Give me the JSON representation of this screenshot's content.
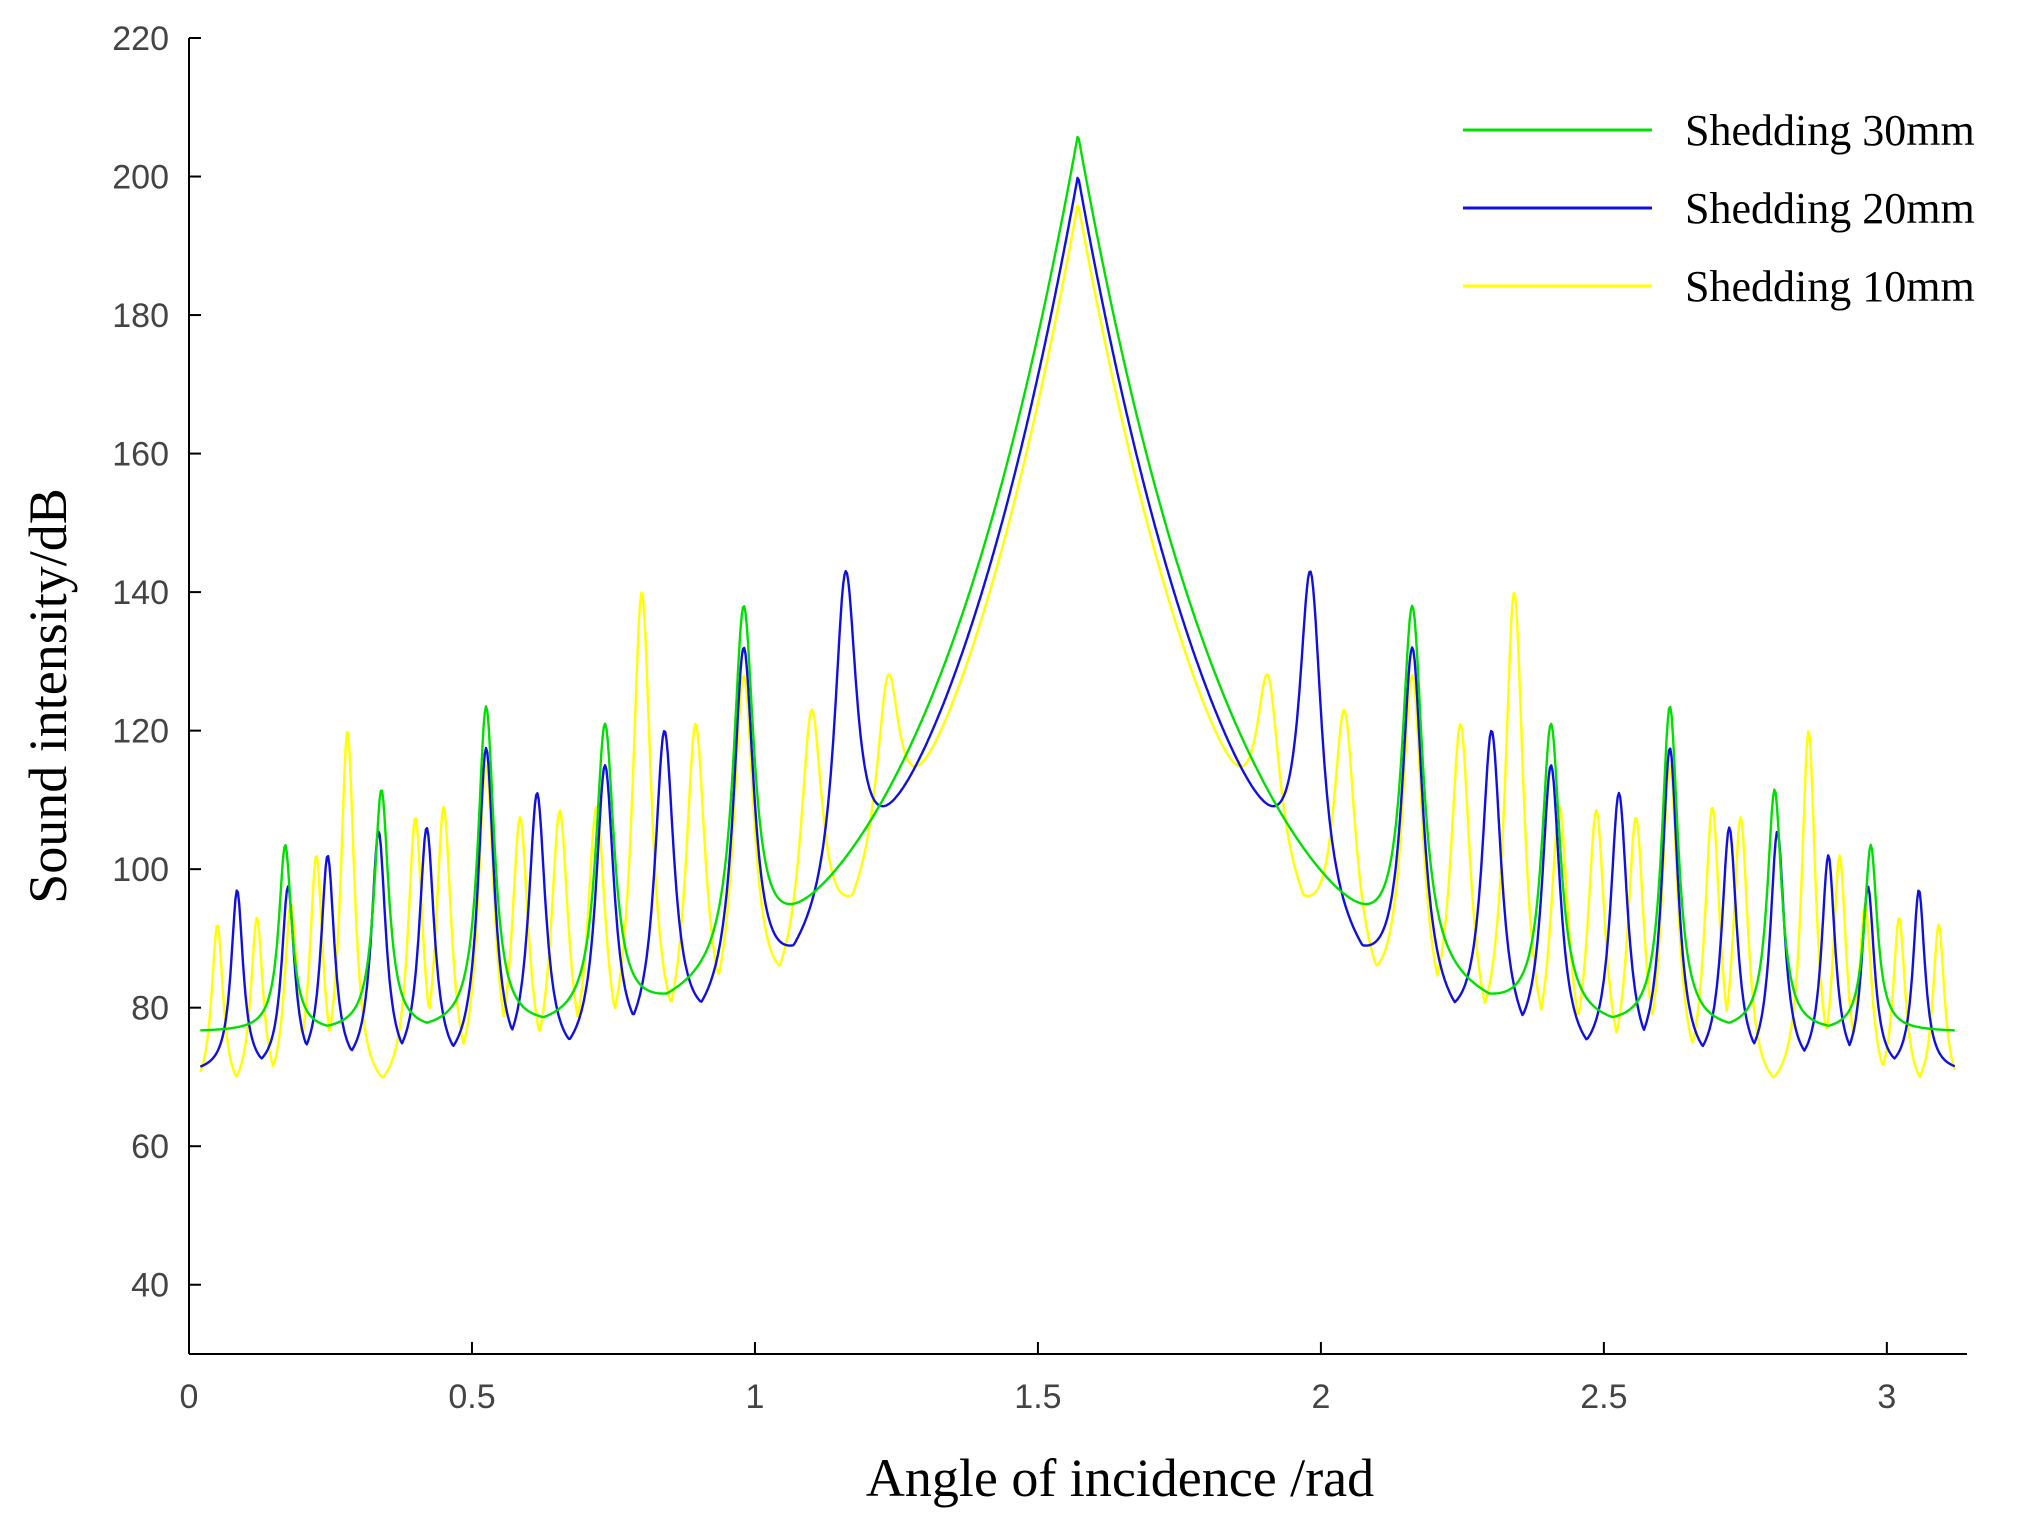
{
  "chart_data": {
    "type": "line",
    "title": "",
    "xlabel": "Angle of incidence /rad",
    "ylabel": "Sound intensity/dB",
    "xlim": [
      0,
      3.1416
    ],
    "ylim": [
      30,
      220
    ],
    "xticks": [
      0,
      0.5,
      1,
      1.5,
      2,
      2.5,
      3
    ],
    "xtick_labels": [
      "0",
      "0.5",
      "1",
      "1.5",
      "2",
      "2.5",
      "3"
    ],
    "yticks": [
      40,
      60,
      80,
      100,
      120,
      140,
      160,
      180,
      200,
      220
    ],
    "ytick_labels": [
      "40",
      "60",
      "80",
      "100",
      "120",
      "140",
      "160",
      "180",
      "200",
      "220"
    ],
    "grid": false,
    "legend_position": "top-right",
    "x_domain": [
      0.02,
      3.12
    ],
    "peak_center": 1.5708,
    "series": [
      {
        "name": "Shedding 30mm",
        "color": "#00e000",
        "center_peak": 206,
        "baseline_edge": 76.5,
        "resonances": [
          {
            "x": 0.17,
            "y": 103.5
          },
          {
            "x": 0.34,
            "y": 111.5
          },
          {
            "x": 0.525,
            "y": 123.5
          },
          {
            "x": 0.735,
            "y": 121
          },
          {
            "x": 0.98,
            "y": 138
          }
        ]
      },
      {
        "name": "Shedding 20mm",
        "color": "#1010e0",
        "center_peak": 200,
        "baseline_edge": 70.5,
        "resonances": [
          {
            "x": 0.085,
            "y": 97
          },
          {
            "x": 0.175,
            "y": 97.5
          },
          {
            "x": 0.245,
            "y": 102
          },
          {
            "x": 0.335,
            "y": 105.5
          },
          {
            "x": 0.42,
            "y": 106
          },
          {
            "x": 0.525,
            "y": 117.5
          },
          {
            "x": 0.615,
            "y": 111
          },
          {
            "x": 0.735,
            "y": 115
          },
          {
            "x": 0.84,
            "y": 120
          },
          {
            "x": 0.98,
            "y": 132
          },
          {
            "x": 1.16,
            "y": 143
          }
        ]
      },
      {
        "name": "Shedding 10mm",
        "color": "#ffff00",
        "center_peak": 196,
        "baseline_edge": 67,
        "resonances": [
          {
            "x": 0.05,
            "y": 92
          },
          {
            "x": 0.12,
            "y": 93
          },
          {
            "x": 0.18,
            "y": 95
          },
          {
            "x": 0.225,
            "y": 102
          },
          {
            "x": 0.28,
            "y": 120
          },
          {
            "x": 0.4,
            "y": 107.5
          },
          {
            "x": 0.45,
            "y": 109
          },
          {
            "x": 0.525,
            "y": 115
          },
          {
            "x": 0.585,
            "y": 107.5
          },
          {
            "x": 0.655,
            "y": 108.5
          },
          {
            "x": 0.72,
            "y": 109
          },
          {
            "x": 0.8,
            "y": 140
          },
          {
            "x": 0.895,
            "y": 121
          },
          {
            "x": 0.98,
            "y": 128
          },
          {
            "x": 1.1,
            "y": 123
          },
          {
            "x": 1.235,
            "y": 128
          }
        ]
      }
    ]
  }
}
